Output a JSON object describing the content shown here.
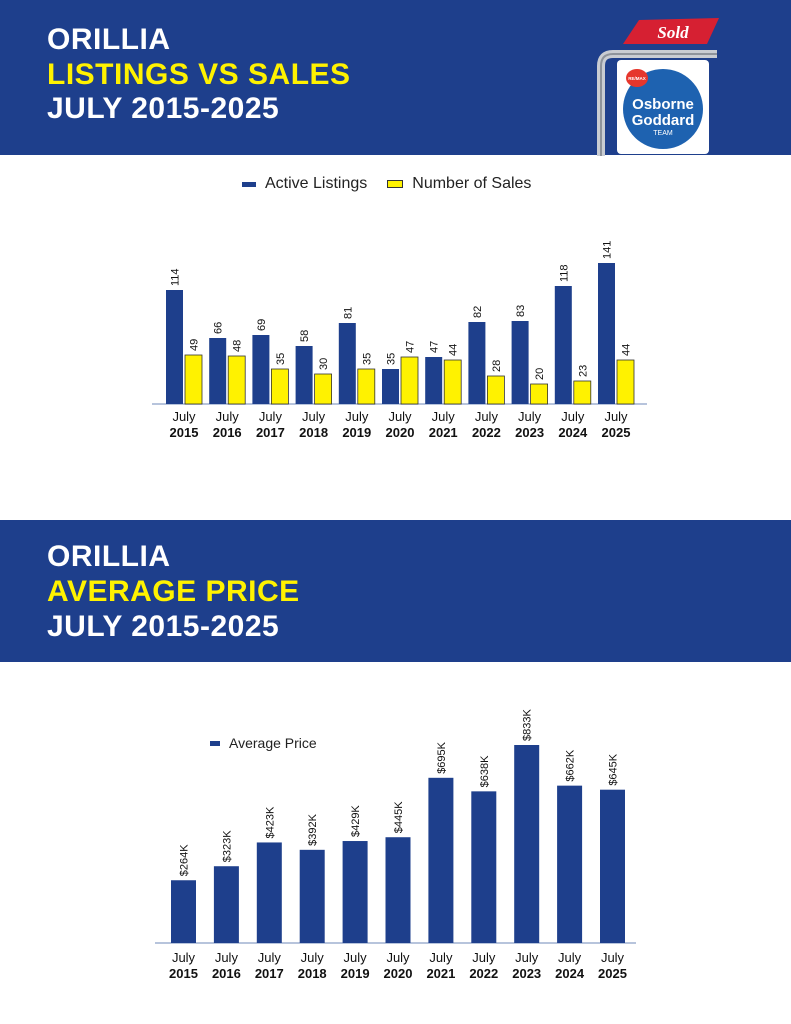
{
  "section1": {
    "title_line1": "ORILLIA",
    "title_line2": "LISTINGS VS SALES",
    "title_line3": "JULY 2015-2025"
  },
  "section2": {
    "title_line1": "ORILLIA",
    "title_line2": "AVERAGE PRICE",
    "title_line3": "JULY 2015-2025"
  },
  "logo": {
    "sign_text": "Sold",
    "brand_small": "RE/MAX",
    "name_line1": "Osborne",
    "name_line2": "Goddard",
    "name_line3": "TEAM"
  },
  "colors": {
    "banner": "#1e3f8c",
    "highlight": "#fff200",
    "bar_blue": "#1e3f8c",
    "bar_yellow": "#fff200",
    "sign_red": "#d62032"
  },
  "chart_data": [
    {
      "type": "bar",
      "categories": [
        "July 2015",
        "July 2016",
        "July 2017",
        "July 2018",
        "July 2019",
        "July 2020",
        "July 2021",
        "July 2022",
        "July 2023",
        "July 2024",
        "July 2025"
      ],
      "category_line1": [
        "July",
        "July",
        "July",
        "July",
        "July",
        "July",
        "July",
        "July",
        "July",
        "July",
        "July"
      ],
      "category_line2": [
        "2015",
        "2016",
        "2017",
        "2018",
        "2019",
        "2020",
        "2021",
        "2022",
        "2023",
        "2024",
        "2025"
      ],
      "series": [
        {
          "name": "Active Listings",
          "values": [
            114,
            66,
            69,
            58,
            81,
            35,
            47,
            82,
            83,
            118,
            141
          ],
          "labels": [
            "114",
            "66",
            "69",
            "58",
            "81",
            "35",
            "47",
            "82",
            "83",
            "118",
            "141"
          ]
        },
        {
          "name": "Number of Sales",
          "values": [
            49,
            48,
            35,
            30,
            35,
            47,
            44,
            28,
            20,
            23,
            44
          ],
          "labels": [
            "49",
            "48",
            "35",
            "30",
            "35",
            "47",
            "44",
            "28",
            "20",
            "23",
            "44"
          ]
        }
      ],
      "legend_position": "top",
      "grid": false
    },
    {
      "type": "bar",
      "categories": [
        "July 2015",
        "July 2016",
        "July 2017",
        "July 2018",
        "July 2019",
        "July 2020",
        "July 2021",
        "July 2022",
        "July 2023",
        "July 2024",
        "July 2025"
      ],
      "category_line1": [
        "July",
        "July",
        "July",
        "July",
        "July",
        "July",
        "July",
        "July",
        "July",
        "July",
        "July"
      ],
      "category_line2": [
        "2015",
        "2016",
        "2017",
        "2018",
        "2019",
        "2020",
        "2021",
        "2022",
        "2023",
        "2024",
        "2025"
      ],
      "series": [
        {
          "name": "Average Price",
          "values": [
            264,
            323,
            423,
            392,
            429,
            445,
            695,
            638,
            833,
            662,
            645
          ],
          "labels": [
            "$264K",
            "$323K",
            "$423K",
            "$392K",
            "$429K",
            "$445K",
            "$695K",
            "$638K",
            "$833K",
            "$662K",
            "$645K"
          ]
        }
      ],
      "unit": "thousands of dollars",
      "legend_position": "top-left",
      "grid": false
    }
  ]
}
